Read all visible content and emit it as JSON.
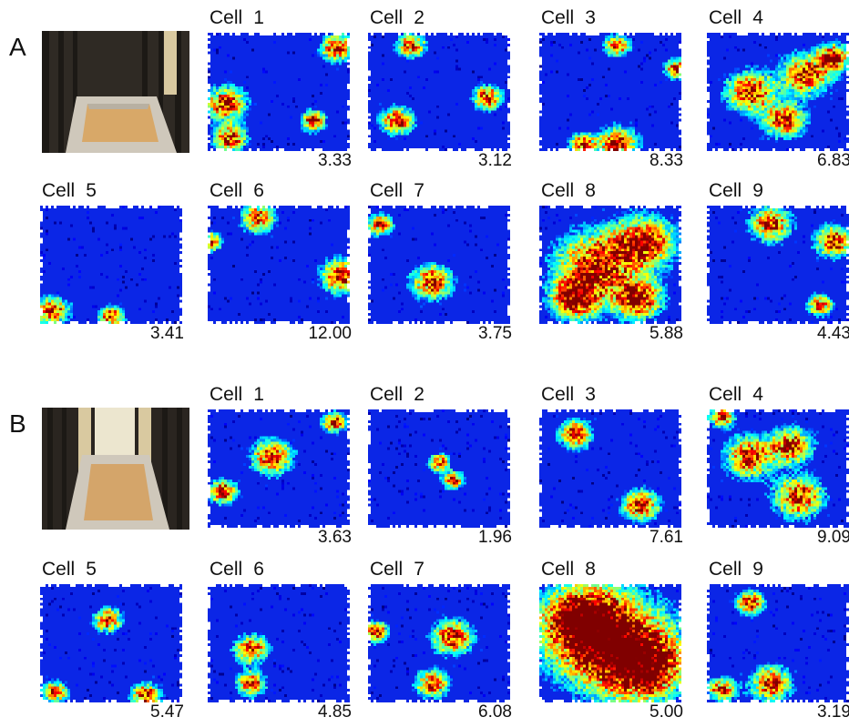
{
  "panels": [
    {
      "letter": "A",
      "cells": [
        {
          "label": "Cell",
          "num": "1",
          "rate": "3.33"
        },
        {
          "label": "Cell",
          "num": "2",
          "rate": "3.12"
        },
        {
          "label": "Cell",
          "num": "3",
          "rate": "8.33"
        },
        {
          "label": "Cell",
          "num": "4",
          "rate": "6.83"
        },
        {
          "label": "Cell",
          "num": "5",
          "rate": "3.41"
        },
        {
          "label": "Cell",
          "num": "6",
          "rate": "12.00"
        },
        {
          "label": "Cell",
          "num": "7",
          "rate": "3.75"
        },
        {
          "label": "Cell",
          "num": "8",
          "rate": "5.88"
        },
        {
          "label": "Cell",
          "num": "9",
          "rate": "4.43"
        }
      ]
    },
    {
      "letter": "B",
      "cells": [
        {
          "label": "Cell",
          "num": "1",
          "rate": "3.63"
        },
        {
          "label": "Cell",
          "num": "2",
          "rate": "1.96"
        },
        {
          "label": "Cell",
          "num": "3",
          "rate": "7.61"
        },
        {
          "label": "Cell",
          "num": "4",
          "rate": "9.09"
        },
        {
          "label": "Cell",
          "num": "5",
          "rate": "5.47"
        },
        {
          "label": "Cell",
          "num": "6",
          "rate": "4.85"
        },
        {
          "label": "Cell",
          "num": "7",
          "rate": "6.08"
        },
        {
          "label": "Cell",
          "num": "8",
          "rate": "5.00"
        },
        {
          "label": "Cell",
          "num": "9",
          "rate": "3.19"
        }
      ]
    }
  ],
  "colors": {
    "map_background": "#0b26e6",
    "jet_scale": [
      "#0000ff",
      "#00bfff",
      "#00ff80",
      "#ffff00",
      "#ff8000",
      "#ff0000"
    ]
  }
}
